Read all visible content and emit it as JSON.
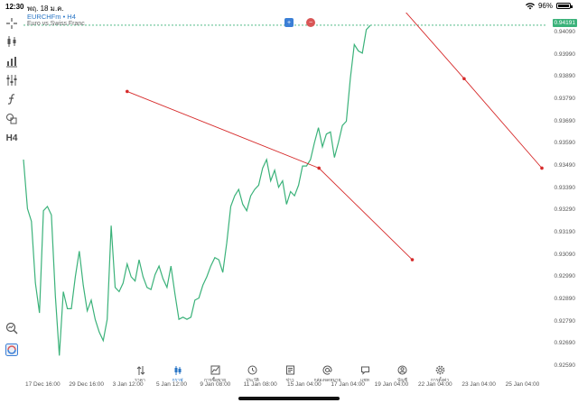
{
  "status": {
    "time": "12:30",
    "date": "พฤ. 18 ม.ค.",
    "battery": "96%",
    "battery_level": 0.96
  },
  "symbol": {
    "title": "EURCHFm • H4",
    "subtitle": "Euro vs Swiss Franc",
    "current_price": "0.94191",
    "buy_icon": "plus-icon",
    "sell_icon": "minus-icon"
  },
  "price_axis": [
    "0.94090",
    "0.93990",
    "0.93890",
    "0.93790",
    "0.93690",
    "0.93590",
    "0.93490",
    "0.93390",
    "0.93290",
    "0.93190",
    "0.93090",
    "0.92990",
    "0.92890",
    "0.92790",
    "0.92690",
    "0.92590"
  ],
  "time_axis": [
    "17 Dec 16:00",
    "29 Dec 16:00",
    "3 Jan 12:00",
    "5 Jan 12:00",
    "9 Jan 08:00",
    "11 Jan 08:00",
    "15 Jan 04:00",
    "17 Jan 04:00",
    "19 Jan 04:00",
    "22 Jan 04:00",
    "23 Jan 04:00",
    "25 Jan 04:00"
  ],
  "left_tools": [
    {
      "name": "crosshair-icon"
    },
    {
      "name": "candles-icon"
    },
    {
      "name": "bar-chart-icon"
    },
    {
      "name": "indicators-icon"
    },
    {
      "name": "function-icon"
    },
    {
      "name": "shapes-icon"
    },
    {
      "name": "timeframe-label",
      "text": "H4"
    }
  ],
  "bottom_left_tools": [
    {
      "name": "zoom-icon"
    },
    {
      "name": "brand-icon"
    }
  ],
  "nav": [
    {
      "label": "ราคา",
      "icon": "arrows-icon"
    },
    {
      "label": "กราฟ",
      "icon": "candles-icon",
      "active": true
    },
    {
      "label": "การซื้อขาย",
      "icon": "trade-icon"
    },
    {
      "label": "ประวัติ",
      "icon": "history-icon"
    },
    {
      "label": "ข่าว",
      "icon": "news-icon"
    },
    {
      "label": "กล่องจดหมาย",
      "icon": "at-icon"
    },
    {
      "label": "แชท",
      "icon": "chat-icon"
    },
    {
      "label": "บัญชี",
      "icon": "account-icon"
    },
    {
      "label": "การตั้งค่า",
      "icon": "settings-icon"
    }
  ],
  "colors": {
    "accent": "#2a76c6",
    "series": "#3bb27a",
    "trendline": "#d62a2a"
  },
  "chart_data": {
    "type": "line",
    "series": [
      {
        "values": [
          0.9356,
          0.9333,
          0.9327,
          0.9298,
          0.9284,
          0.9332,
          0.9334,
          0.933,
          0.9292,
          0.9264,
          0.9294,
          0.9286,
          0.9286,
          0.9301,
          0.9313,
          0.9297,
          0.9285,
          0.929,
          0.9281,
          0.9275,
          0.9271,
          0.9281,
          0.9325,
          0.9296,
          0.9294,
          0.9298,
          0.9307,
          0.9301,
          0.9299,
          0.9309,
          0.9301,
          0.9296,
          0.9295,
          0.9302,
          0.9306,
          0.93,
          0.9296,
          0.9306,
          0.9293,
          0.9281,
          0.9282,
          0.9281,
          0.9282,
          0.929,
          0.9291,
          0.9297,
          0.9301,
          0.9306,
          0.931,
          0.9309,
          0.9303,
          0.9317,
          0.9334,
          0.9339,
          0.9342,
          0.9335,
          0.9332,
          0.9339,
          0.9342,
          0.9344,
          0.9352,
          0.9356,
          0.9346,
          0.9351,
          0.9343,
          0.9346,
          0.9335,
          0.9341,
          0.9339,
          0.9344,
          0.9353,
          0.9353,
          0.9356,
          0.9364,
          0.9371,
          0.9362,
          0.9368,
          0.9369,
          0.9357,
          0.9364,
          0.9372,
          0.9374,
          0.9394,
          0.941,
          0.9407,
          0.9406,
          0.9417,
          0.9419
        ]
      }
    ],
    "trendlines": [
      {
        "points": [
          [
            0.2,
            0.9388
          ],
          [
            0.57,
            0.9352
          ],
          [
            0.75,
            0.9309
          ]
        ]
      },
      {
        "points": [
          [
            0.72,
            0.943
          ],
          [
            0.85,
            0.9394
          ],
          [
            1.0,
            0.9352
          ]
        ]
      }
    ],
    "ylim": [
      0.9254,
      0.9425
    ],
    "xlabel": "",
    "ylabel": ""
  }
}
